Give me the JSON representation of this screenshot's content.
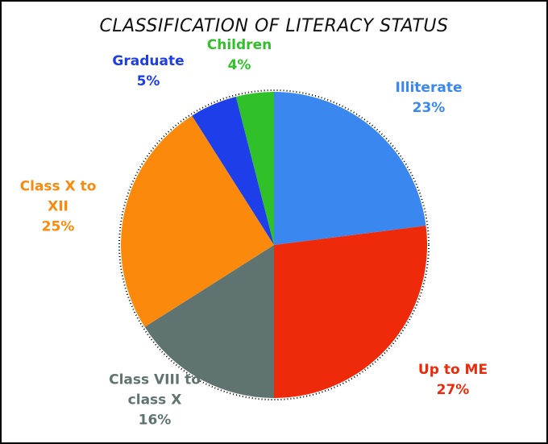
{
  "chart_data": {
    "type": "pie",
    "title": "CLASSIFICATION OF LITERACY STATUS",
    "categories": [
      "Illiterate",
      "Up to ME",
      "Class VIII to class X",
      "Class X to XII",
      "Graduate",
      "Children"
    ],
    "values": [
      23,
      27,
      16,
      25,
      5,
      4
    ],
    "value_labels": [
      "23%",
      "27%",
      "16%",
      "25%",
      "5%",
      "4%"
    ],
    "colors": [
      "#3a87f0",
      "#ee2a0a",
      "#5f7470",
      "#fb8a0c",
      "#1d3ee8",
      "#2fc02a"
    ]
  }
}
